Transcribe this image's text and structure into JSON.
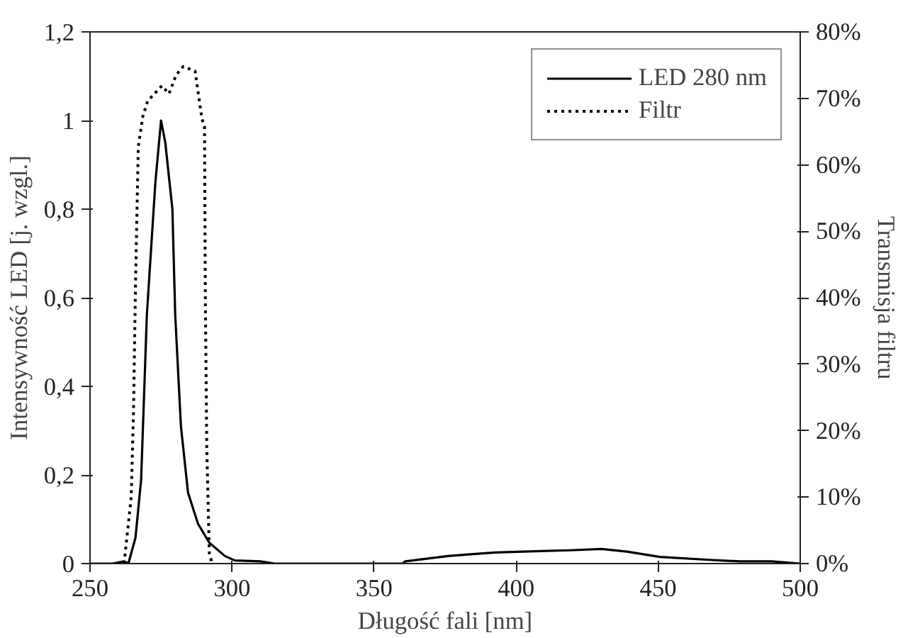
{
  "chart_data": {
    "type": "line",
    "xlabel": "Długość fali [nm]",
    "ylabel": "Intensywność LED [j. wzgl.]",
    "y2label": "Transmisja filtru",
    "xlim": [
      250,
      500
    ],
    "xticks": [
      250,
      300,
      350,
      400,
      450,
      500
    ],
    "ylim": [
      0,
      1.2
    ],
    "yticks": [
      0,
      {
        "value": 0.2,
        "label": "0,2"
      },
      {
        "value": 0.4,
        "label": "0,4"
      },
      {
        "value": 0.6,
        "label": "0,6"
      },
      {
        "value": 0.8,
        "label": "0,8"
      },
      1,
      {
        "value": 1.2,
        "label": "1,2"
      }
    ],
    "y2lim": [
      0,
      80
    ],
    "y2ticks": [
      {
        "value": 0,
        "label": "0%"
      },
      {
        "value": 10,
        "label": "10%"
      },
      {
        "value": 20,
        "label": "20%"
      },
      {
        "value": 30,
        "label": "30%"
      },
      {
        "value": 40,
        "label": "40%"
      },
      {
        "value": 50,
        "label": "50%"
      },
      {
        "value": 60,
        "label": "60%"
      },
      {
        "value": 70,
        "label": "70%"
      },
      {
        "value": 80,
        "label": "80%"
      }
    ],
    "grid": false,
    "legend": "top right",
    "series": [
      {
        "name": "LED 280 nm",
        "color": "#000000",
        "line_style": "solid",
        "x": [
          250,
          258,
          262,
          263.5,
          266,
          268,
          270,
          273,
          275,
          276.5,
          279,
          280,
          282,
          284.5,
          288,
          292,
          297.5,
          301,
          310,
          315,
          360,
          361,
          376,
          384,
          392.6,
          402.5,
          419,
          430,
          439,
          450.6,
          469,
          479,
          490,
          500
        ],
        "values": [
          0,
          0,
          0.005,
          0,
          0.058,
          0.19,
          0.56,
          0.86,
          1.0,
          0.95,
          0.8,
          0.56,
          0.31,
          0.16,
          0.09,
          0.047,
          0.017,
          0.007,
          0.005,
          0,
          0,
          0.005,
          0.017,
          0.021,
          0.025,
          0.027,
          0.03,
          0.033,
          0.027,
          0.015,
          0.008,
          0.005,
          0.005,
          0
        ]
      },
      {
        "name": "Filtr",
        "color": "#000000",
        "line_style": "dotted",
        "axis": "y2",
        "x": [
          262,
          264.5,
          265.3,
          266,
          267,
          268.6,
          270.3,
          275.3,
          277.8,
          280.3,
          282.8,
          287,
          289.4,
          290.3,
          290.6,
          291.1,
          292,
          293
        ],
        "values": [
          0,
          10,
          22.7,
          41.7,
          62.8,
          67.3,
          69.6,
          71.9,
          70.7,
          73.5,
          74.8,
          74.1,
          66.9,
          65.8,
          40,
          17.5,
          1.6,
          0
        ]
      }
    ]
  }
}
